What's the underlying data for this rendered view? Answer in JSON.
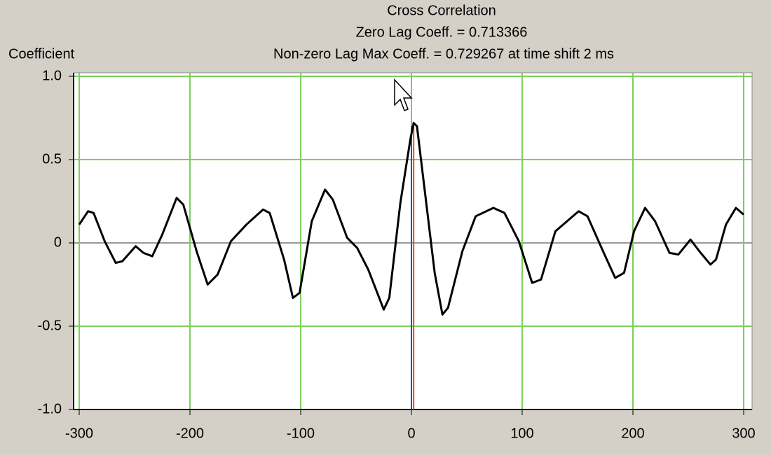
{
  "chart_data": {
    "type": "line",
    "title": "Cross Correlation",
    "subtitle": [
      "Zero Lag Coeff. = 0.713366",
      "Non-zero Lag Max Coeff. = 0.729267 at time shift 2 ms"
    ],
    "y_label": "Coefficient",
    "x": [
      -300,
      -292,
      -287,
      -277,
      -267,
      -261,
      -249,
      -242,
      -234,
      -225,
      -212,
      -206,
      -194,
      -184,
      -175,
      -163,
      -149,
      -134,
      -128,
      -115,
      -107,
      -101,
      -90,
      -78,
      -71,
      -58,
      -49,
      -39,
      -25,
      -20,
      -10,
      -1,
      2,
      5,
      11,
      21,
      28,
      33,
      46,
      58,
      74,
      84,
      97,
      109,
      117,
      130,
      151,
      159,
      173,
      184,
      192,
      201,
      211,
      220,
      233,
      241,
      252,
      260,
      270,
      275,
      284,
      293,
      300
    ],
    "series": [
      {
        "color": "#000000",
        "values": [
          0.11,
          0.19,
          0.18,
          0.01,
          -0.12,
          -0.11,
          -0.02,
          -0.06,
          -0.08,
          0.05,
          0.27,
          0.23,
          -0.05,
          -0.25,
          -0.19,
          0.01,
          0.11,
          0.2,
          0.18,
          -0.1,
          -0.33,
          -0.3,
          0.13,
          0.32,
          0.26,
          0.03,
          -0.03,
          -0.16,
          -0.4,
          -0.33,
          0.24,
          0.62,
          0.72,
          0.7,
          0.37,
          -0.18,
          -0.43,
          -0.39,
          -0.05,
          0.16,
          0.21,
          0.18,
          0.01,
          -0.24,
          -0.22,
          0.07,
          0.19,
          0.16,
          -0.05,
          -0.21,
          -0.18,
          0.07,
          0.21,
          0.13,
          -0.06,
          -0.07,
          0.02,
          -0.05,
          -0.13,
          -0.1,
          0.11,
          0.21,
          0.17
        ]
      }
    ],
    "markers": [
      {
        "x": 0,
        "color": "#2050d0"
      },
      {
        "x": 2,
        "color": "#e0502a"
      }
    ],
    "xlim": [
      -300,
      300
    ],
    "ylim": [
      -1,
      1
    ],
    "xticks": [
      -300,
      -200,
      -100,
      0,
      100,
      200,
      300
    ],
    "yticks": [
      {
        "value": 1,
        "label": "1.0"
      },
      0.5,
      0,
      -0.5,
      {
        "value": -1,
        "label": "-1.0"
      }
    ],
    "grid": true,
    "grid_color": "#7ccf5c"
  }
}
